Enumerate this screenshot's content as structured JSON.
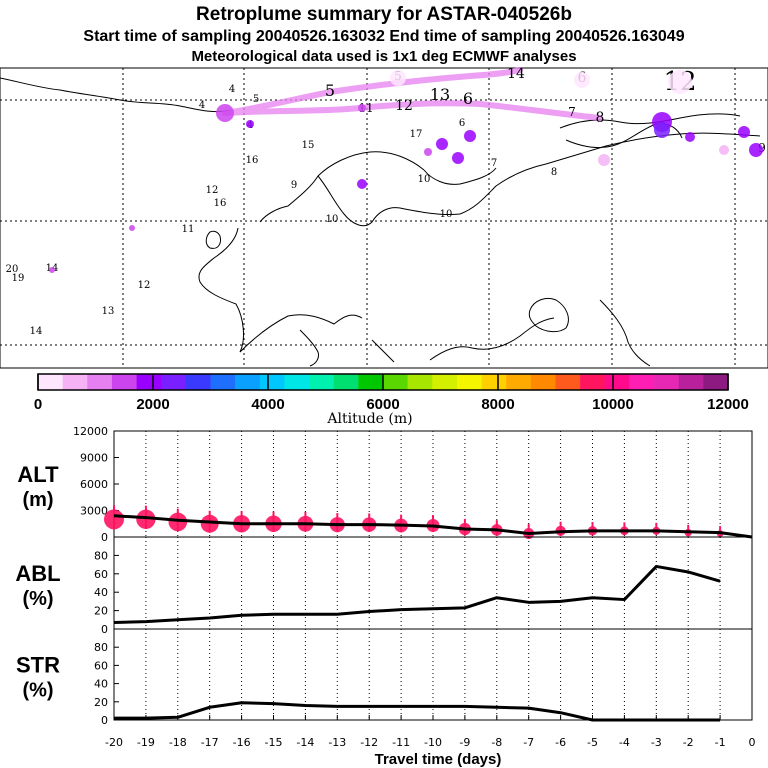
{
  "header": {
    "title": "Retroplume summary for ASTAR-040526b",
    "line2": "Start time of sampling 20040526.163032      End time of sampling 20040526.163049",
    "line3": "Meteorological data used is 1x1 deg ECMWF analyses"
  },
  "map": {
    "labels": [
      {
        "t": "4",
        "c": "#000000"
      },
      {
        "t": "4",
        "c": "#000000"
      },
      {
        "t": "4",
        "c": "#000000"
      },
      {
        "t": "5",
        "c": "#000000"
      },
      {
        "t": "5",
        "c": "#000000"
      },
      {
        "t": "5",
        "c": "#000000"
      },
      {
        "t": "6",
        "c": "#000000"
      },
      {
        "t": "6",
        "c": "#000000"
      },
      {
        "t": "6",
        "c": "#000000"
      },
      {
        "t": "7",
        "c": "#000000"
      },
      {
        "t": "7",
        "c": "#000000"
      },
      {
        "t": "8",
        "c": "#000000"
      },
      {
        "t": "8",
        "c": "#000000"
      },
      {
        "t": "9",
        "c": "#000000"
      },
      {
        "t": "9",
        "c": "#000000"
      },
      {
        "t": "10",
        "c": "#000000"
      },
      {
        "t": "10",
        "c": "#000000"
      },
      {
        "t": "10",
        "c": "#000000"
      },
      {
        "t": "11",
        "c": "#000000"
      },
      {
        "t": "11",
        "c": "#000000"
      },
      {
        "t": "12",
        "c": "#000000"
      },
      {
        "t": "12",
        "c": "#000000"
      },
      {
        "t": "12",
        "c": "#000000"
      },
      {
        "t": "13",
        "c": "#000000"
      },
      {
        "t": "13",
        "c": "#000000"
      },
      {
        "t": "14",
        "c": "#000000"
      },
      {
        "t": "14",
        "c": "#000000"
      },
      {
        "t": "14",
        "c": "#000000"
      },
      {
        "t": "15",
        "c": "#000000"
      },
      {
        "t": "16",
        "c": "#000000"
      },
      {
        "t": "16",
        "c": "#000000"
      },
      {
        "t": "17",
        "c": "#000000"
      },
      {
        "t": "19",
        "c": "#000000"
      },
      {
        "t": "20",
        "c": "#000000"
      }
    ]
  },
  "colorbar": {
    "ticks": [
      "0",
      "2000",
      "4000",
      "6000",
      "8000",
      "10000",
      "12000"
    ],
    "label": "Altitude (m)",
    "colors": [
      "#ffe6ff",
      "#f5b3f5",
      "#e680f0",
      "#cc44ee",
      "#9900ff",
      "#7a1fff",
      "#3a3aff",
      "#1f6fff",
      "#0aa0ff",
      "#00c8ff",
      "#00e6e6",
      "#00f0b0",
      "#00e070",
      "#00c800",
      "#5ad700",
      "#a6e600",
      "#d2f000",
      "#f5f500",
      "#ffd000",
      "#ffaa00",
      "#ff8a00",
      "#ff5a1e",
      "#ff1460",
      "#ff0a8c",
      "#ff1eb4",
      "#e628b4",
      "#b8209c",
      "#8c1a80"
    ]
  },
  "chart_data": [
    {
      "type": "line",
      "panel": "ALT",
      "ylabel_top": "ALT",
      "ylabel_bottom": "(m)",
      "ylim": [
        0,
        12000
      ],
      "yticks": [
        "12000",
        "9000",
        "6000",
        "3000",
        "0"
      ],
      "x": [
        -20,
        -19,
        -18,
        -17,
        -16,
        -15,
        -14,
        -13,
        -12,
        -11,
        -10,
        -9,
        -8,
        -7,
        -6,
        -5,
        -4,
        -3,
        -2,
        -1,
        0
      ],
      "values": [
        2400,
        2200,
        1900,
        1700,
        1500,
        1500,
        1500,
        1400,
        1400,
        1350,
        1250,
        900,
        800,
        400,
        600,
        700,
        700,
        700,
        600,
        500,
        0
      ],
      "markers": [
        2000,
        2000,
        1700,
        1500,
        1500,
        1500,
        1500,
        1400,
        1400,
        1300,
        1300,
        900,
        800,
        400,
        700,
        700,
        700,
        700,
        500,
        400
      ],
      "marker_color": "#ff1460"
    },
    {
      "type": "line",
      "panel": "ABL",
      "ylabel_top": "ABL",
      "ylabel_bottom": "(%)",
      "ylim": [
        0,
        100
      ],
      "yticks": [
        "80",
        "60",
        "40",
        "20",
        "0"
      ],
      "x": [
        -20,
        -19,
        -18,
        -17,
        -16,
        -15,
        -14,
        -13,
        -12,
        -11,
        -10,
        -9,
        -8,
        -7,
        -6,
        -5,
        -4,
        -3,
        -2,
        -1
      ],
      "values": [
        7,
        8,
        10,
        12,
        15,
        16,
        16,
        16,
        19,
        21,
        22,
        23,
        34,
        29,
        30,
        34,
        32,
        68,
        62,
        52
      ]
    },
    {
      "type": "line",
      "panel": "STR",
      "ylabel_top": "STR",
      "ylabel_bottom": "(%)",
      "ylim": [
        0,
        100
      ],
      "yticks": [
        "80",
        "60",
        "40",
        "20",
        "0"
      ],
      "x": [
        -20,
        -19,
        -18,
        -17,
        -16,
        -15,
        -14,
        -13,
        -12,
        -11,
        -10,
        -9,
        -8,
        -7,
        -6,
        -5,
        -4,
        -3,
        -2,
        -1
      ],
      "values": [
        2,
        2,
        3,
        14,
        19,
        18,
        16,
        15,
        15,
        15,
        15,
        15,
        14,
        13,
        8,
        0,
        0,
        0,
        0,
        0
      ]
    }
  ],
  "xaxis": {
    "ticks": [
      "-20",
      "-19",
      "-18",
      "-17",
      "-16",
      "-15",
      "-14",
      "-13",
      "-12",
      "-11",
      "-10",
      "-9",
      "-8",
      "-7",
      "-6",
      "-5",
      "-4",
      "-3",
      "-2",
      "-1",
      "0"
    ],
    "label": "Travel time (days)"
  }
}
